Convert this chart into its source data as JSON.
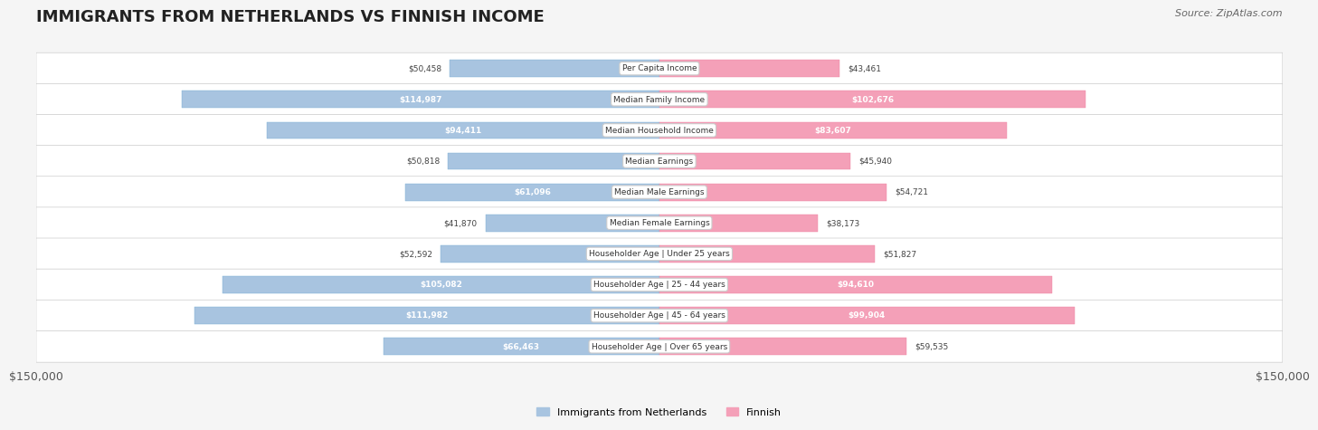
{
  "title": "IMMIGRANTS FROM NETHERLANDS VS FINNISH INCOME",
  "source": "Source: ZipAtlas.com",
  "categories": [
    "Per Capita Income",
    "Median Family Income",
    "Median Household Income",
    "Median Earnings",
    "Median Male Earnings",
    "Median Female Earnings",
    "Householder Age | Under 25 years",
    "Householder Age | 25 - 44 years",
    "Householder Age | 45 - 64 years",
    "Householder Age | Over 65 years"
  ],
  "netherlands_values": [
    50458,
    114987,
    94411,
    50818,
    61096,
    41870,
    52592,
    105082,
    111982,
    66463
  ],
  "finnish_values": [
    43461,
    102676,
    83607,
    45940,
    54721,
    38173,
    51827,
    94610,
    99904,
    59535
  ],
  "netherlands_labels": [
    "$50,458",
    "$114,987",
    "$94,411",
    "$50,818",
    "$61,096",
    "$41,870",
    "$52,592",
    "$105,082",
    "$111,982",
    "$66,463"
  ],
  "finnish_labels": [
    "$43,461",
    "$102,676",
    "$83,607",
    "$45,940",
    "$54,721",
    "$38,173",
    "$51,827",
    "$94,610",
    "$99,904",
    "$59,535"
  ],
  "netherlands_color": "#a8c4e0",
  "netherlands_color_dark": "#7bafd4",
  "finnish_color": "#f4a0b8",
  "finnish_color_dark": "#ee82a0",
  "max_value": 150000,
  "x_tick_label_left": "$150,000",
  "x_tick_label_right": "$150,000",
  "background_color": "#f5f5f5",
  "row_bg_color": "#ffffff",
  "legend_netherlands": "Immigrants from Netherlands",
  "legend_finnish": "Finnish"
}
